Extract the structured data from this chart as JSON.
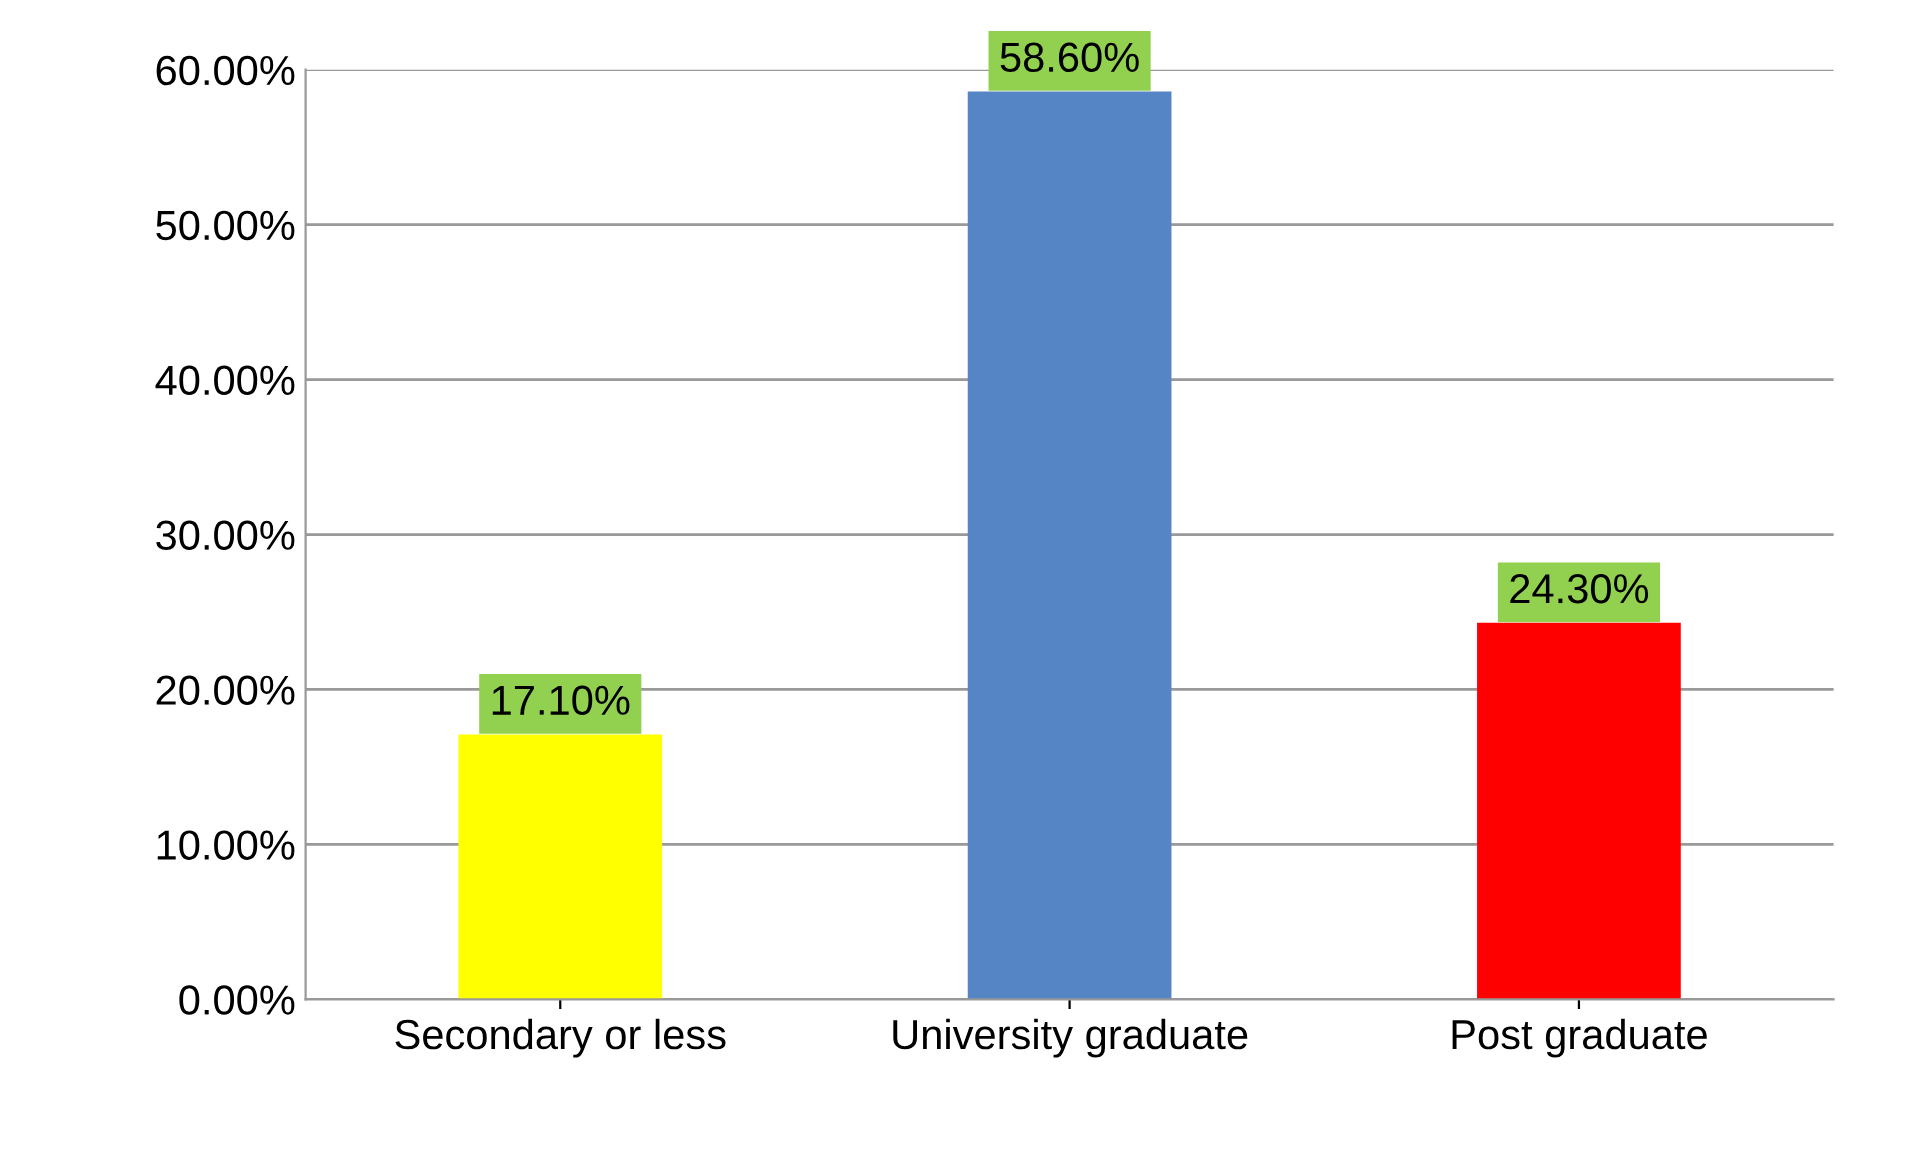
{
  "chart_data": {
    "type": "bar",
    "categories": [
      "Secondary or less",
      "University graduate",
      "Post graduate"
    ],
    "values": [
      17.1,
      58.6,
      24.3
    ],
    "colors": [
      "#ffff00",
      "#5585c5",
      "#ff0000"
    ],
    "value_labels": [
      "17.10%",
      "58.60%",
      "24.30%"
    ],
    "ylim": [
      0,
      60
    ],
    "yticks": [
      {
        "value": 0,
        "label": "0.00%"
      },
      {
        "value": 10,
        "label": "10.00%"
      },
      {
        "value": 20,
        "label": "20.00%"
      },
      {
        "value": 30,
        "label": "30.00%"
      },
      {
        "value": 40,
        "label": "40.00%"
      },
      {
        "value": 50,
        "label": "50.00%"
      },
      {
        "value": 60,
        "label": "60.00%"
      }
    ],
    "grid": "y"
  }
}
